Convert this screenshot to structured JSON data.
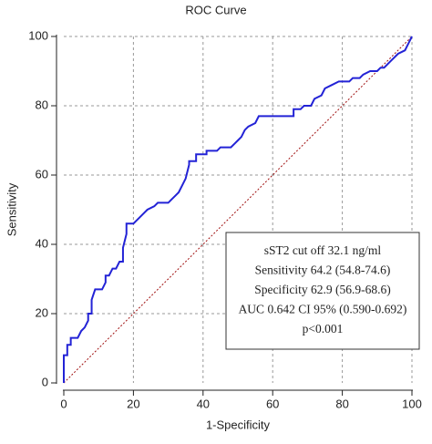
{
  "chart_data": {
    "type": "line",
    "title": "ROC Curve",
    "x_label": "1-Specificity",
    "y_label": "Sensitivity",
    "x": [
      0,
      0,
      1,
      1,
      2,
      2,
      4,
      5,
      6,
      7,
      7,
      8,
      8,
      9,
      11,
      12,
      12,
      13,
      14,
      15,
      16,
      17,
      17,
      18,
      18,
      20,
      21,
      23,
      24,
      26,
      27,
      30,
      31,
      32,
      33,
      34,
      35,
      36,
      36,
      38,
      38,
      41,
      41,
      44,
      45,
      48,
      49,
      50,
      51,
      52,
      53,
      55,
      56,
      66,
      66,
      68,
      69,
      71,
      72,
      74,
      75,
      77,
      79,
      82,
      83,
      85,
      86,
      88,
      90,
      91,
      92,
      94,
      96,
      98,
      99,
      100
    ],
    "values": [
      0,
      8,
      8,
      11,
      11,
      13,
      13,
      15,
      16,
      18,
      20,
      20,
      24,
      27,
      27,
      29,
      31,
      31,
      33,
      33,
      35,
      35,
      39,
      43,
      46,
      46,
      47,
      49,
      50,
      51,
      52,
      52,
      53,
      54,
      55,
      57,
      59,
      63,
      64,
      64,
      66,
      66,
      67,
      67,
      68,
      68,
      69,
      70,
      71,
      73,
      74,
      75,
      77,
      77,
      79,
      79,
      80,
      80,
      82,
      83,
      85,
      86,
      87,
      87,
      88,
      88,
      89,
      90,
      90,
      91,
      91,
      93,
      95,
      96,
      98,
      100
    ],
    "color": "#2323d6",
    "reference_line_color": "#a01010",
    "xlim": [
      0,
      100
    ],
    "ylim": [
      0,
      100
    ],
    "xticks": [
      0,
      20,
      40,
      60,
      80,
      100
    ],
    "yticks": [
      0,
      20,
      40,
      60,
      80,
      100
    ],
    "grid": true,
    "annotations": [
      "sST2 cut off 32.1 ng/ml",
      "Sensitivity 64.2 (54.8-74.6)",
      "Specificity 62.9 (56.9-68.6)",
      "AUC 0.642 CI 95% (0.590-0.692)",
      "p<0.001"
    ]
  }
}
